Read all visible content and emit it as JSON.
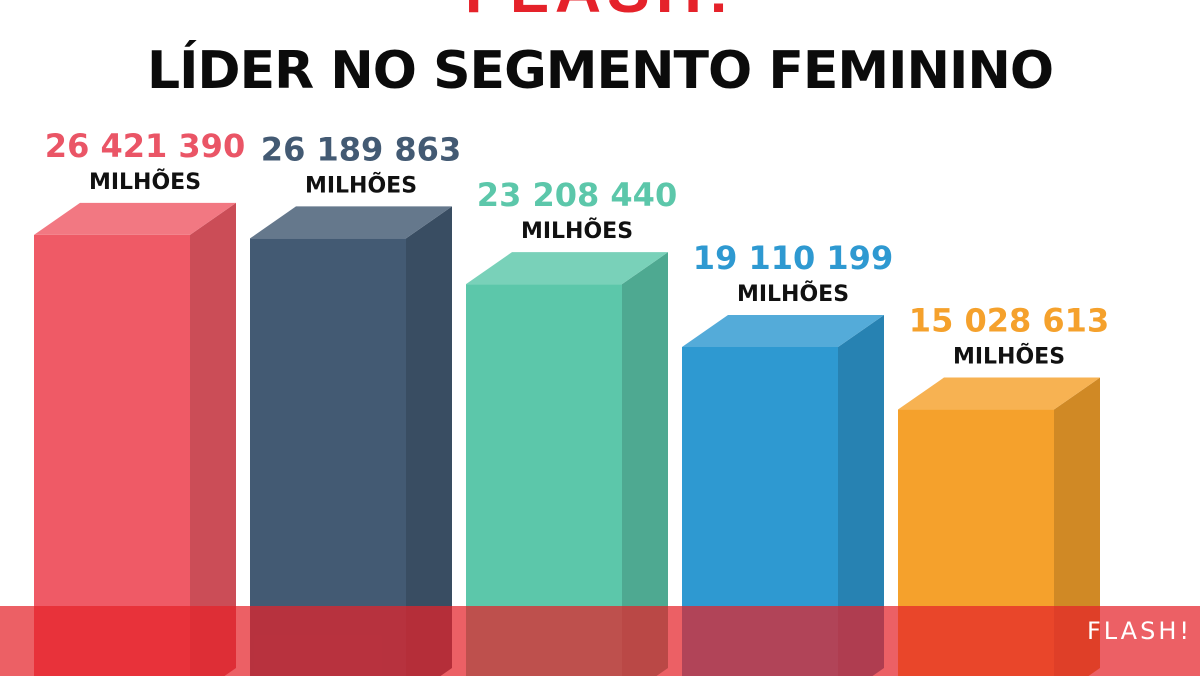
{
  "header": {
    "top_title": "FLASH!",
    "headline": "LÍDER NO SEGMENTO FEMININO"
  },
  "footer": {
    "brand": "FLASH!"
  },
  "colors": {
    "accent": "#e5222a"
  },
  "chart_data": {
    "type": "bar",
    "title": "LÍDER NO SEGMENTO FEMININO",
    "unit": "MILHÕES",
    "value_labels": [
      "26 421 390",
      "26 189 863",
      "23 208 440",
      "19 110 199",
      "15 028 613"
    ],
    "values": [
      26421390,
      26189863,
      23208440,
      19110199,
      15028613
    ],
    "colors": [
      "#ef5a66",
      "#435a73",
      "#5cc7aa",
      "#2e99d1",
      "#f5a12c"
    ],
    "label_colors": [
      "#ea5566",
      "#435a73",
      "#5cc7aa",
      "#2e99d1",
      "#f5a12c"
    ],
    "ylim": [
      0,
      30000000
    ],
    "style": "3d"
  }
}
